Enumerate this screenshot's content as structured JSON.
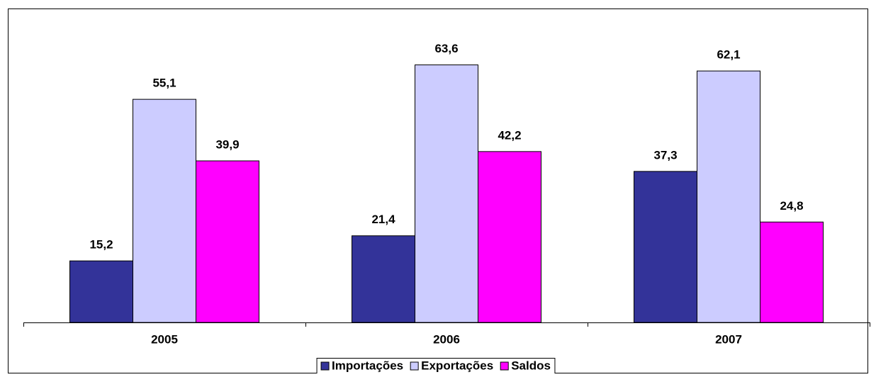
{
  "chart_data": {
    "type": "bar",
    "categories": [
      "2005",
      "2006",
      "2007"
    ],
    "series": [
      {
        "name": "Importações",
        "color": "#333399",
        "values": [
          15.2,
          21.4,
          37.3
        ],
        "value_labels": [
          "15,2",
          "21,4",
          "37,3"
        ]
      },
      {
        "name": "Exportações",
        "color": "#ccccff",
        "values": [
          55.1,
          63.6,
          62.1
        ],
        "value_labels": [
          "55,1",
          "63,6",
          "62,1"
        ]
      },
      {
        "name": "Saldos",
        "color": "#ff00ff",
        "values": [
          39.9,
          42.2,
          24.8
        ],
        "value_labels": [
          "39,9",
          "42,2",
          "24,8"
        ]
      }
    ],
    "ylim": [
      0,
      70
    ],
    "legend": "bottom"
  }
}
